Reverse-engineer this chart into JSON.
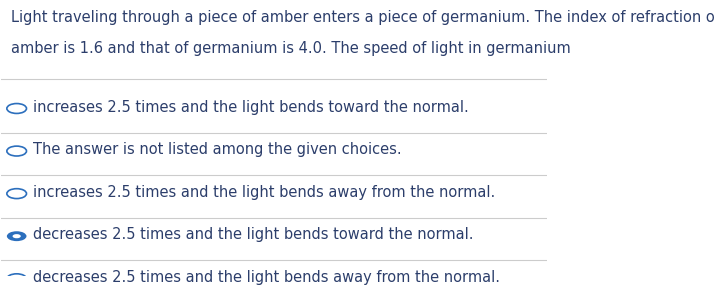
{
  "question_lines": [
    "Light traveling through a piece of amber enters a piece of germanium. The index of refraction of",
    "amber is 1.6 and that of germanium is 4.0. The speed of light in germanium"
  ],
  "options": [
    "increases 2.5 times and the light bends toward the normal.",
    "The answer is not listed among the given choices.",
    "increases 2.5 times and the light bends away from the normal.",
    "decreases 2.5 times and the light bends toward the normal.",
    "decreases 2.5 times and the light bends away from the normal."
  ],
  "selected_index": 3,
  "bg_color": "#ffffff",
  "text_color": "#2c3e6b",
  "line_color": "#cccccc",
  "circle_color": "#2c6fbd",
  "font_size": 10.5,
  "question_font_size": 10.5
}
